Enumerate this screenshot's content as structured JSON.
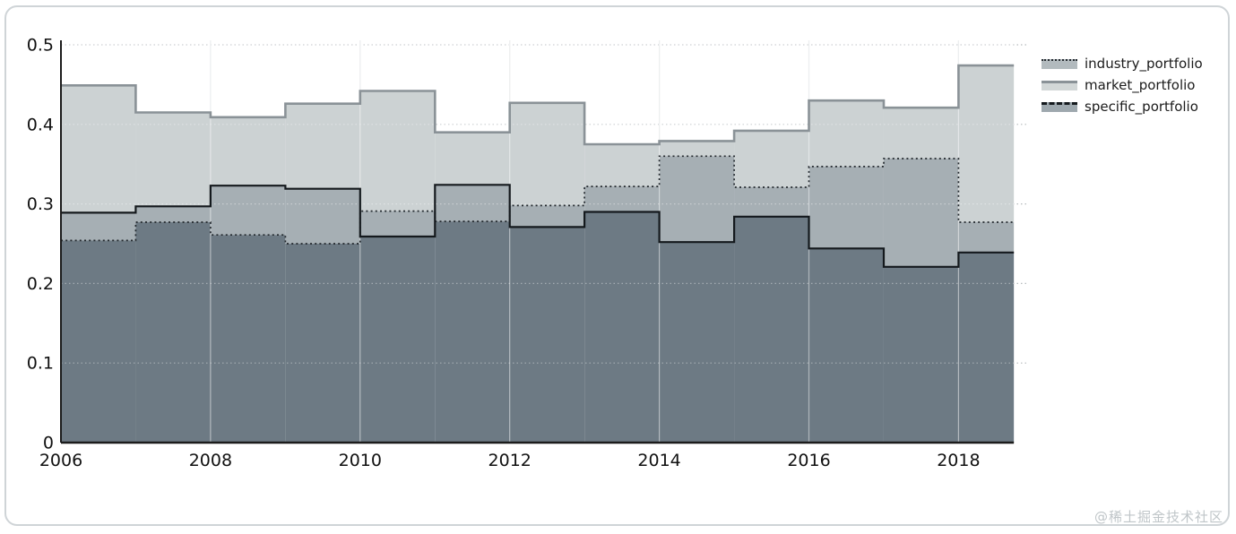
{
  "chart_data": {
    "type": "area",
    "subtype": "step-area-overlay",
    "title": "",
    "xlabel": "",
    "ylabel": "",
    "years": [
      2006,
      2007,
      2008,
      2009,
      2010,
      2011,
      2012,
      2013,
      2014,
      2015,
      2016,
      2017,
      2018
    ],
    "x_end": 2018.74,
    "series": [
      {
        "name": "industry_portfolio",
        "values": [
          0.254,
          0.277,
          0.261,
          0.25,
          0.291,
          0.278,
          0.298,
          0.322,
          0.36,
          0.321,
          0.347,
          0.357,
          0.277
        ],
        "line_color": "#23292e",
        "line_style": "dotted"
      },
      {
        "name": "market_portfolio",
        "values": [
          0.449,
          0.415,
          0.409,
          0.426,
          0.442,
          0.39,
          0.427,
          0.375,
          0.379,
          0.392,
          0.43,
          0.421,
          0.474
        ],
        "line_color": "#8a9297",
        "line_style": "solid"
      },
      {
        "name": "specific_portfolio",
        "values": [
          0.289,
          0.297,
          0.323,
          0.319,
          0.259,
          0.324,
          0.271,
          0.29,
          0.252,
          0.284,
          0.244,
          0.221,
          0.239
        ],
        "line_color": "#14191d",
        "line_style": "solid"
      }
    ],
    "ylim": [
      0,
      0.5
    ],
    "yticks": [
      "0",
      "0.1",
      "0.2",
      "0.3",
      "0.4",
      "0.5"
    ],
    "ytick_values": [
      0,
      0.1,
      0.2,
      0.3,
      0.4,
      0.5
    ],
    "xticks": [
      "2006",
      "2008",
      "2010",
      "2012",
      "2014",
      "2016",
      "2018"
    ],
    "xtick_values": [
      2006,
      2008,
      2010,
      2012,
      2014,
      2016,
      2018
    ],
    "grid": true,
    "legend_position": "right-top",
    "band_colors": {
      "light": "#ccd2d3",
      "medium": "#a6afb4",
      "dark": "#6d7a84"
    },
    "axis_color": "#1c1c1c"
  },
  "legend": {
    "items": [
      {
        "label": "industry_portfolio"
      },
      {
        "label": "market_portfolio"
      },
      {
        "label": "specific_portfolio"
      }
    ]
  },
  "watermark": "@稀土掘金技术社区"
}
